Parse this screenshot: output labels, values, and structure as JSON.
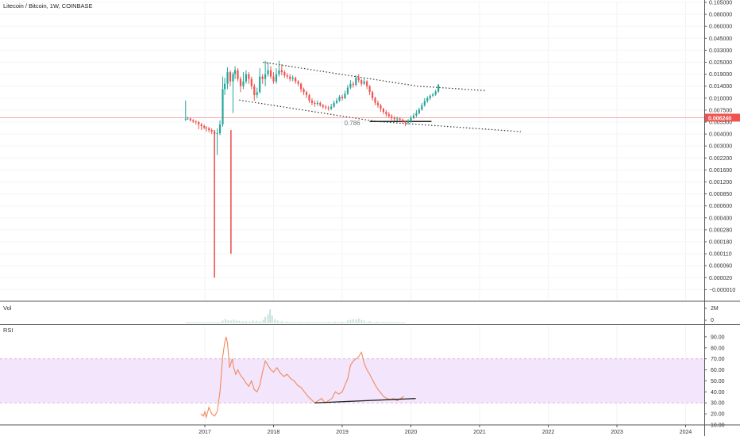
{
  "chart_data": {
    "type": "candlestick",
    "title": "Litecoin / Bitcoin, 1W, COINBASE",
    "price_axis": {
      "scale": "log",
      "ticks": [
        "0.105000",
        "0.080000",
        "0.060000",
        "0.045000",
        "0.033000",
        "0.025000",
        "0.019000",
        "0.014000",
        "0.010000",
        "0.007500",
        "0.005500",
        "0.004000",
        "0.003000",
        "0.002200",
        "0.001600",
        "0.001200",
        "0.000850",
        "0.000600",
        "0.000400",
        "0.000280",
        "0.000180",
        "0.000110",
        "0.000060",
        "0.000020",
        "−0.000010"
      ],
      "current_price": "0.006240"
    },
    "x_axis": {
      "ticks": [
        "2017",
        "2018",
        "2019",
        "2020",
        "2021",
        "2022",
        "2023",
        "2024"
      ]
    },
    "channel_upper": {
      "x": [
        2017.85,
        2020.1,
        2021.1
      ],
      "y": [
        "0.025000",
        "0.014000",
        "0.012500"
      ]
    },
    "channel_lower": {
      "x": [
        2017.5,
        2019.5,
        2021.6
      ],
      "y": [
        "0.009600",
        "0.005600",
        "0.004300"
      ]
    },
    "support": {
      "label": "0.786",
      "price": "0.005600",
      "x": [
        2019.4,
        2020.3
      ]
    },
    "candles": [
      [
        2016.72,
        0.006,
        0.006,
        0.0095,
        0.0057
      ],
      [
        2016.75,
        0.006,
        0.0061,
        0.0064,
        0.0059
      ],
      [
        2016.79,
        0.0061,
        0.0058,
        0.0062,
        0.0056
      ],
      [
        2016.83,
        0.0058,
        0.0056,
        0.006,
        0.0054
      ],
      [
        2016.87,
        0.0056,
        0.0055,
        0.0058,
        0.0052
      ],
      [
        2016.91,
        0.0055,
        0.0052,
        0.0057,
        0.0046
      ],
      [
        2016.95,
        0.0052,
        0.005,
        0.0054,
        0.0045
      ],
      [
        2016.99,
        0.005,
        0.0048,
        0.0052,
        0.0046
      ],
      [
        2017.02,
        0.0048,
        0.0047,
        0.005,
        0.0043
      ],
      [
        2017.06,
        0.0047,
        0.0045,
        0.0049,
        0.0042
      ],
      [
        2017.1,
        0.0045,
        0.0043,
        0.0047,
        0.004
      ],
      [
        2017.14,
        0.0043,
        0.004,
        0.0045,
        0.0035
      ],
      [
        2017.18,
        0.004,
        0.0041,
        0.0047,
        0.0024
      ],
      [
        2017.22,
        0.0041,
        0.0052,
        0.0058,
        0.0039
      ],
      [
        2017.26,
        0.0052,
        0.013,
        0.018,
        0.0049
      ],
      [
        2017.29,
        0.013,
        0.015,
        0.0175,
        0.011
      ],
      [
        2017.33,
        0.015,
        0.02,
        0.0225,
        0.013
      ],
      [
        2017.37,
        0.02,
        0.016,
        0.021,
        0.014
      ],
      [
        2017.41,
        0.016,
        0.019,
        0.02,
        0.007
      ],
      [
        2017.44,
        0.019,
        0.021,
        0.023,
        0.017
      ],
      [
        2017.48,
        0.021,
        0.017,
        0.022,
        0.016
      ],
      [
        2017.52,
        0.017,
        0.014,
        0.018,
        0.012
      ],
      [
        2017.56,
        0.014,
        0.016,
        0.02,
        0.013
      ],
      [
        2017.6,
        0.016,
        0.019,
        0.021,
        0.015
      ],
      [
        2017.64,
        0.019,
        0.017,
        0.02,
        0.015
      ],
      [
        2017.68,
        0.017,
        0.014,
        0.018,
        0.013
      ],
      [
        2017.72,
        0.014,
        0.011,
        0.015,
        0.0095
      ],
      [
        2017.76,
        0.011,
        0.012,
        0.0135,
        0.01
      ],
      [
        2017.8,
        0.012,
        0.018,
        0.022,
        0.0115
      ],
      [
        2017.84,
        0.018,
        0.017,
        0.019,
        0.015
      ],
      [
        2017.88,
        0.017,
        0.019,
        0.026,
        0.014
      ],
      [
        2017.92,
        0.019,
        0.021,
        0.025,
        0.018
      ],
      [
        2017.96,
        0.021,
        0.018,
        0.023,
        0.017
      ],
      [
        2018.0,
        0.018,
        0.016,
        0.02,
        0.015
      ],
      [
        2018.04,
        0.016,
        0.019,
        0.022,
        0.015
      ],
      [
        2018.08,
        0.019,
        0.021,
        0.026,
        0.018
      ],
      [
        2018.12,
        0.021,
        0.02,
        0.024,
        0.0185
      ],
      [
        2018.16,
        0.02,
        0.0185,
        0.021,
        0.0175
      ],
      [
        2018.2,
        0.0185,
        0.018,
        0.0195,
        0.017
      ],
      [
        2018.24,
        0.018,
        0.017,
        0.019,
        0.016
      ],
      [
        2018.28,
        0.017,
        0.0175,
        0.0185,
        0.016
      ],
      [
        2018.32,
        0.0175,
        0.016,
        0.018,
        0.015
      ],
      [
        2018.36,
        0.016,
        0.015,
        0.0165,
        0.014
      ],
      [
        2018.4,
        0.015,
        0.013,
        0.0155,
        0.012
      ],
      [
        2018.44,
        0.013,
        0.012,
        0.0135,
        0.011
      ],
      [
        2018.48,
        0.012,
        0.011,
        0.0125,
        0.01
      ],
      [
        2018.52,
        0.011,
        0.0095,
        0.0115,
        0.009
      ],
      [
        2018.56,
        0.0095,
        0.009,
        0.01,
        0.0085
      ],
      [
        2018.6,
        0.009,
        0.0088,
        0.0095,
        0.0082
      ],
      [
        2018.64,
        0.0088,
        0.009,
        0.0095,
        0.0084
      ],
      [
        2018.68,
        0.009,
        0.0085,
        0.0093,
        0.0082
      ],
      [
        2018.72,
        0.0085,
        0.0082,
        0.0088,
        0.0078
      ],
      [
        2018.76,
        0.0082,
        0.008,
        0.0086,
        0.0076
      ],
      [
        2018.8,
        0.008,
        0.0078,
        0.0084,
        0.0074
      ],
      [
        2018.84,
        0.0078,
        0.0082,
        0.0088,
        0.0075
      ],
      [
        2018.88,
        0.0082,
        0.009,
        0.0095,
        0.008
      ],
      [
        2018.92,
        0.009,
        0.0095,
        0.01,
        0.0088
      ],
      [
        2018.96,
        0.0095,
        0.0105,
        0.011,
        0.0092
      ],
      [
        2019.0,
        0.0105,
        0.01,
        0.0112,
        0.0095
      ],
      [
        2019.04,
        0.01,
        0.0115,
        0.0125,
        0.0098
      ],
      [
        2019.08,
        0.0115,
        0.0135,
        0.0145,
        0.011
      ],
      [
        2019.12,
        0.0135,
        0.015,
        0.0165,
        0.013
      ],
      [
        2019.16,
        0.015,
        0.0145,
        0.016,
        0.0135
      ],
      [
        2019.2,
        0.0145,
        0.0175,
        0.0185,
        0.014
      ],
      [
        2019.24,
        0.0175,
        0.0165,
        0.019,
        0.0155
      ],
      [
        2019.28,
        0.0165,
        0.015,
        0.017,
        0.014
      ],
      [
        2019.32,
        0.015,
        0.016,
        0.0175,
        0.0145
      ],
      [
        2019.36,
        0.016,
        0.014,
        0.0165,
        0.013
      ],
      [
        2019.4,
        0.014,
        0.012,
        0.0145,
        0.011
      ],
      [
        2019.44,
        0.012,
        0.01,
        0.0125,
        0.0095
      ],
      [
        2019.48,
        0.01,
        0.009,
        0.0105,
        0.0085
      ],
      [
        2019.52,
        0.009,
        0.0085,
        0.0095,
        0.008
      ],
      [
        2019.56,
        0.0085,
        0.0078,
        0.0088,
        0.0072
      ],
      [
        2019.6,
        0.0078,
        0.0072,
        0.008,
        0.0068
      ],
      [
        2019.64,
        0.0072,
        0.0068,
        0.0075,
        0.0064
      ],
      [
        2019.68,
        0.0068,
        0.0065,
        0.0072,
        0.0062
      ],
      [
        2019.72,
        0.0065,
        0.0062,
        0.0068,
        0.0058
      ],
      [
        2019.76,
        0.0062,
        0.006,
        0.0065,
        0.0057
      ],
      [
        2019.8,
        0.006,
        0.0061,
        0.0064,
        0.0057
      ],
      [
        2019.84,
        0.0061,
        0.0059,
        0.0063,
        0.0056
      ],
      [
        2019.88,
        0.0059,
        0.0056,
        0.0061,
        0.0053
      ],
      [
        2019.92,
        0.0056,
        0.0054,
        0.0058,
        0.005
      ],
      [
        2019.96,
        0.0054,
        0.0056,
        0.006,
        0.0052
      ],
      [
        2020.0,
        0.0056,
        0.0062,
        0.0066,
        0.0054
      ],
      [
        2020.04,
        0.0062,
        0.0066,
        0.007,
        0.006
      ],
      [
        2020.08,
        0.0066,
        0.007,
        0.0075,
        0.0063
      ],
      [
        2020.12,
        0.007,
        0.0076,
        0.008,
        0.0068
      ],
      [
        2020.16,
        0.0076,
        0.0085,
        0.009,
        0.0074
      ],
      [
        2020.2,
        0.0085,
        0.0094,
        0.01,
        0.0082
      ],
      [
        2020.24,
        0.0094,
        0.01,
        0.0106,
        0.009
      ],
      [
        2020.28,
        0.01,
        0.0108,
        0.0112,
        0.0096
      ],
      [
        2020.32,
        0.0108,
        0.0112,
        0.0118,
        0.0104
      ],
      [
        2020.36,
        0.0112,
        0.0122,
        0.0128,
        0.0108
      ],
      [
        2020.4,
        0.0122,
        0.0145,
        0.015,
        0.0118
      ]
    ],
    "extreme_wicks": [
      {
        "x": 2017.14,
        "low": "0.000020"
      },
      {
        "x": 2017.38,
        "low": "0.000110"
      }
    ],
    "volume_pane": {
      "label": "Vol",
      "axis_ticks": [
        "2M",
        "0"
      ],
      "max": 2.6,
      "bars": [
        [
          2017.26,
          0.3
        ],
        [
          2017.3,
          0.5
        ],
        [
          2017.34,
          0.35
        ],
        [
          2017.38,
          0.3
        ],
        [
          2017.42,
          0.45
        ],
        [
          2017.46,
          0.3
        ],
        [
          2017.5,
          0.25
        ],
        [
          2017.55,
          0.2
        ],
        [
          2017.6,
          0.2
        ],
        [
          2017.65,
          0.15
        ],
        [
          2017.7,
          0.3
        ],
        [
          2017.75,
          0.25
        ],
        [
          2017.8,
          0.2
        ],
        [
          2017.85,
          0.4
        ],
        [
          2017.88,
          0.8
        ],
        [
          2017.92,
          1.2
        ],
        [
          2017.95,
          1.9
        ],
        [
          2017.98,
          1.0
        ],
        [
          2018.02,
          0.5
        ],
        [
          2018.06,
          0.3
        ],
        [
          2018.12,
          0.2
        ],
        [
          2018.2,
          0.15
        ],
        [
          2018.3,
          0.1
        ],
        [
          2018.4,
          0.1
        ],
        [
          2018.5,
          0.1
        ],
        [
          2018.6,
          0.08
        ],
        [
          2018.7,
          0.08
        ],
        [
          2018.8,
          0.1
        ],
        [
          2018.9,
          0.15
        ],
        [
          2019.0,
          0.15
        ],
        [
          2019.08,
          0.3
        ],
        [
          2019.12,
          0.4
        ],
        [
          2019.16,
          0.5
        ],
        [
          2019.2,
          0.45
        ],
        [
          2019.24,
          0.6
        ],
        [
          2019.28,
          0.4
        ],
        [
          2019.32,
          0.3
        ],
        [
          2019.4,
          0.2
        ],
        [
          2019.5,
          0.15
        ],
        [
          2019.6,
          0.1
        ],
        [
          2019.7,
          0.1
        ],
        [
          2019.8,
          0.08
        ],
        [
          2019.9,
          0.06
        ]
      ]
    },
    "rsi_pane": {
      "label": "RSI",
      "ylim": [
        10,
        100
      ],
      "ticks": [
        90,
        80,
        70,
        60,
        50,
        40,
        30,
        20,
        10
      ],
      "tick_labels": [
        "90.00",
        "80.00",
        "70.00",
        "60.00",
        "50.00",
        "40.00",
        "30.00",
        "20.00",
        "10.00"
      ],
      "band": [
        30,
        70
      ],
      "x": [
        2016.94,
        2016.98,
        2017.0,
        2017.02,
        2017.06,
        2017.1,
        2017.14,
        2017.18,
        2017.22,
        2017.26,
        2017.29,
        2017.31,
        2017.33,
        2017.36,
        2017.4,
        2017.42,
        2017.45,
        2017.48,
        2017.52,
        2017.56,
        2017.6,
        2017.64,
        2017.68,
        2017.72,
        2017.76,
        2017.8,
        2017.84,
        2017.88,
        2017.92,
        2017.96,
        2018.0,
        2018.05,
        2018.1,
        2018.15,
        2018.2,
        2018.25,
        2018.3,
        2018.35,
        2018.4,
        2018.45,
        2018.5,
        2018.55,
        2018.6,
        2018.65,
        2018.7,
        2018.75,
        2018.8,
        2018.85,
        2018.9,
        2018.95,
        2019.0,
        2019.04,
        2019.08,
        2019.12,
        2019.16,
        2019.2,
        2019.24,
        2019.28,
        2019.32,
        2019.36,
        2019.4,
        2019.45,
        2019.5,
        2019.55,
        2019.6,
        2019.65,
        2019.7,
        2019.75,
        2019.8,
        2019.85,
        2019.9
      ],
      "y": [
        20,
        18,
        22,
        17,
        26,
        20,
        18,
        22,
        40,
        72,
        85,
        90,
        84,
        62,
        70,
        62,
        56,
        60,
        55,
        52,
        48,
        45,
        50,
        42,
        40,
        46,
        58,
        68,
        64,
        60,
        58,
        62,
        57,
        54,
        56,
        52,
        50,
        46,
        44,
        40,
        36,
        33,
        30,
        32,
        34,
        30,
        32,
        34,
        40,
        38,
        40,
        46,
        52,
        64,
        68,
        70,
        72,
        76,
        66,
        60,
        56,
        50,
        44,
        40,
        36,
        34,
        33,
        34,
        32,
        34,
        36
      ]
    },
    "rsi_trendline": {
      "x": [
        2018.6,
        2020.07
      ],
      "y": [
        30,
        34
      ]
    }
  }
}
